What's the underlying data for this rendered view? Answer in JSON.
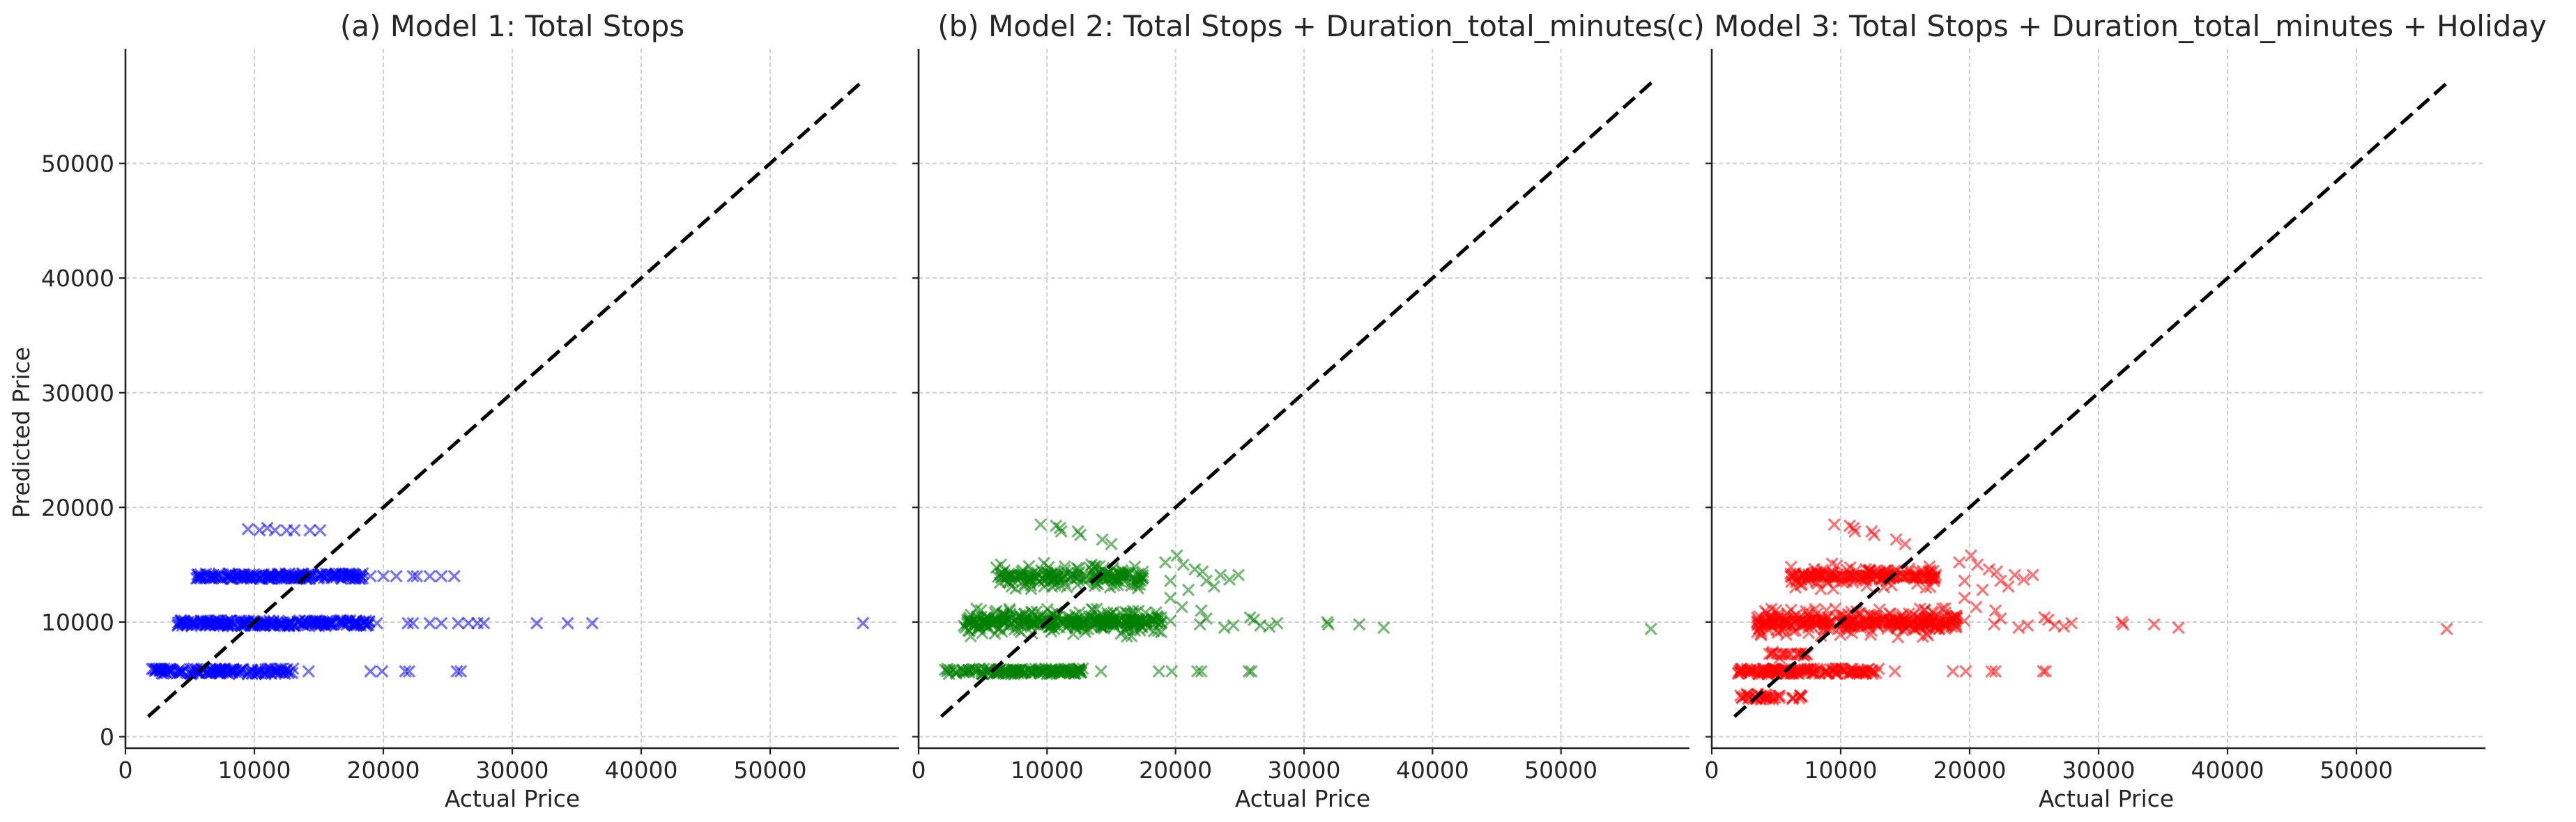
{
  "figure": {
    "ylabel": "Predicted Price",
    "shared_y": true,
    "marker": "x",
    "marker_alpha": 0.55
  },
  "chart_data": [
    {
      "type": "scatter",
      "title": "(a) Model 1: Total Stops",
      "xlabel": "Actual Price",
      "ylabel": "Predicted Price",
      "xlim": [
        0,
        60000
      ],
      "ylim": [
        -1000,
        60000
      ],
      "xticks": [
        0,
        10000,
        20000,
        30000,
        40000,
        50000
      ],
      "yticks": [
        0,
        10000,
        20000,
        30000,
        40000,
        50000
      ],
      "grid": true,
      "color": "#0000ff",
      "reference_line": {
        "x": [
          1760,
          57210
        ],
        "y": [
          1760,
          57210
        ],
        "style": "dashed",
        "color": "#000000"
      },
      "bands": [
        {
          "y": 5700,
          "x_min": 2000,
          "x_max": 13000,
          "density": 1.3
        },
        {
          "y": 9900,
          "x_min": 4000,
          "x_max": 19000,
          "density": 1.5
        },
        {
          "y": 14000,
          "x_min": 5500,
          "x_max": 18500,
          "density": 1.4
        }
      ],
      "points": [
        [
          10400,
          18000
        ],
        [
          11000,
          18200
        ],
        [
          12500,
          18000
        ],
        [
          13100,
          18000
        ],
        [
          14300,
          18000
        ],
        [
          15100,
          18000
        ],
        [
          9500,
          18100
        ],
        [
          11600,
          18000
        ],
        [
          14200,
          5700
        ],
        [
          19000,
          5700
        ],
        [
          19900,
          5700
        ],
        [
          21700,
          5700
        ],
        [
          22000,
          5700
        ],
        [
          25700,
          5700
        ],
        [
          26000,
          5700
        ],
        [
          19500,
          9900
        ],
        [
          21900,
          9900
        ],
        [
          22300,
          9900
        ],
        [
          23600,
          9900
        ],
        [
          24500,
          9900
        ],
        [
          25800,
          9900
        ],
        [
          26600,
          9900
        ],
        [
          27300,
          9900
        ],
        [
          27800,
          9900
        ],
        [
          31900,
          9900
        ],
        [
          34300,
          9900
        ],
        [
          36200,
          9900
        ],
        [
          57200,
          9900
        ],
        [
          19000,
          14000
        ],
        [
          20000,
          14000
        ],
        [
          21000,
          14000
        ],
        [
          22300,
          14000
        ],
        [
          22600,
          14000
        ],
        [
          23600,
          14000
        ],
        [
          24500,
          14000
        ],
        [
          25500,
          14000
        ]
      ]
    },
    {
      "type": "scatter",
      "title": "(b) Model 2: Total Stops + Duration_total_minutes",
      "xlabel": "Actual Price",
      "ylabel": "",
      "xlim": [
        0,
        60000
      ],
      "ylim": [
        -1000,
        60000
      ],
      "xticks": [
        0,
        10000,
        20000,
        30000,
        40000,
        50000
      ],
      "yticks": [
        0,
        10000,
        20000,
        30000,
        40000,
        50000
      ],
      "grid": true,
      "color": "#008000",
      "reference_line": {
        "x": [
          1760,
          57210
        ],
        "y": [
          1760,
          57210
        ],
        "style": "dashed",
        "color": "#000000"
      },
      "bands": [
        {
          "y": 5700,
          "x_min": 2000,
          "x_max": 13000,
          "density": 1.3
        },
        {
          "y": 10000,
          "x_min": 3500,
          "x_max": 19000,
          "spread": 1400,
          "density": 2.2
        },
        {
          "y": 14000,
          "x_min": 6000,
          "x_max": 17500,
          "spread": 1300,
          "density": 1.6
        }
      ],
      "points": [
        [
          9500,
          18500
        ],
        [
          10700,
          18400
        ],
        [
          11000,
          18200
        ],
        [
          11100,
          17900
        ],
        [
          12400,
          17900
        ],
        [
          12600,
          17600
        ],
        [
          14300,
          17200
        ],
        [
          15000,
          16800
        ],
        [
          14200,
          5700
        ],
        [
          18700,
          5700
        ],
        [
          19700,
          5700
        ],
        [
          21700,
          5700
        ],
        [
          22000,
          5700
        ],
        [
          25700,
          5700
        ],
        [
          25900,
          5700
        ],
        [
          19200,
          15200
        ],
        [
          20100,
          15800
        ],
        [
          20600,
          15000
        ],
        [
          21500,
          14600
        ],
        [
          22100,
          14400
        ],
        [
          22400,
          13600
        ],
        [
          23000,
          13100
        ],
        [
          23500,
          14100
        ],
        [
          24200,
          13700
        ],
        [
          24900,
          14100
        ],
        [
          19600,
          13600
        ],
        [
          21000,
          12800
        ],
        [
          19600,
          10100
        ],
        [
          21900,
          9800
        ],
        [
          22400,
          10300
        ],
        [
          23800,
          9500
        ],
        [
          24500,
          9700
        ],
        [
          25800,
          10400
        ],
        [
          26100,
          10200
        ],
        [
          26600,
          9700
        ],
        [
          27300,
          9600
        ],
        [
          27900,
          9900
        ],
        [
          31800,
          10000
        ],
        [
          31900,
          9800
        ],
        [
          34300,
          9800
        ],
        [
          36200,
          9500
        ],
        [
          57000,
          9400
        ],
        [
          19600,
          12100
        ],
        [
          20500,
          11300
        ],
        [
          22000,
          11000
        ]
      ]
    },
    {
      "type": "scatter",
      "title": "(c) Model 3: Total Stops + Duration_total_minutes + Holiday",
      "xlabel": "Actual Price",
      "ylabel": "",
      "xlim": [
        0,
        60000
      ],
      "ylim": [
        -1000,
        60000
      ],
      "xticks": [
        0,
        10000,
        20000,
        30000,
        40000,
        50000
      ],
      "yticks": [
        0,
        10000,
        20000,
        30000,
        40000,
        50000
      ],
      "grid": true,
      "color": "#ff0000",
      "reference_line": {
        "x": [
          1760,
          57210
        ],
        "y": [
          1760,
          57210
        ],
        "style": "dashed",
        "color": "#000000"
      },
      "bands": [
        {
          "y": 3500,
          "x_min": 2000,
          "x_max": 7000,
          "density": 0.8
        },
        {
          "y": 5700,
          "x_min": 2000,
          "x_max": 13000,
          "density": 1.3
        },
        {
          "y": 7200,
          "x_min": 4000,
          "x_max": 7500,
          "spread": 500,
          "density": 0.6
        },
        {
          "y": 10000,
          "x_min": 3500,
          "x_max": 19000,
          "spread": 1400,
          "density": 2.2
        },
        {
          "y": 14000,
          "x_min": 6000,
          "x_max": 17500,
          "spread": 1300,
          "density": 1.6
        }
      ],
      "points": [
        [
          9500,
          18500
        ],
        [
          10700,
          18400
        ],
        [
          11000,
          18200
        ],
        [
          11100,
          17900
        ],
        [
          12400,
          17900
        ],
        [
          12600,
          17600
        ],
        [
          14300,
          17200
        ],
        [
          15000,
          16800
        ],
        [
          14200,
          5700
        ],
        [
          18700,
          5700
        ],
        [
          19700,
          5700
        ],
        [
          21700,
          5700
        ],
        [
          22000,
          5700
        ],
        [
          25700,
          5700
        ],
        [
          25900,
          5700
        ],
        [
          19200,
          15200
        ],
        [
          20100,
          15800
        ],
        [
          20600,
          15000
        ],
        [
          21500,
          14600
        ],
        [
          22100,
          14400
        ],
        [
          22400,
          13600
        ],
        [
          23000,
          13100
        ],
        [
          23500,
          14100
        ],
        [
          24200,
          13700
        ],
        [
          24900,
          14100
        ],
        [
          19600,
          13600
        ],
        [
          21000,
          12800
        ],
        [
          19600,
          10100
        ],
        [
          21900,
          9800
        ],
        [
          22400,
          10300
        ],
        [
          23800,
          9500
        ],
        [
          24500,
          9700
        ],
        [
          25800,
          10400
        ],
        [
          26100,
          10200
        ],
        [
          26600,
          9700
        ],
        [
          27300,
          9600
        ],
        [
          27900,
          9900
        ],
        [
          31800,
          10000
        ],
        [
          31900,
          9800
        ],
        [
          34300,
          9800
        ],
        [
          36200,
          9500
        ],
        [
          57000,
          9400
        ],
        [
          19600,
          12100
        ],
        [
          20500,
          11300
        ],
        [
          22000,
          11000
        ]
      ]
    }
  ]
}
